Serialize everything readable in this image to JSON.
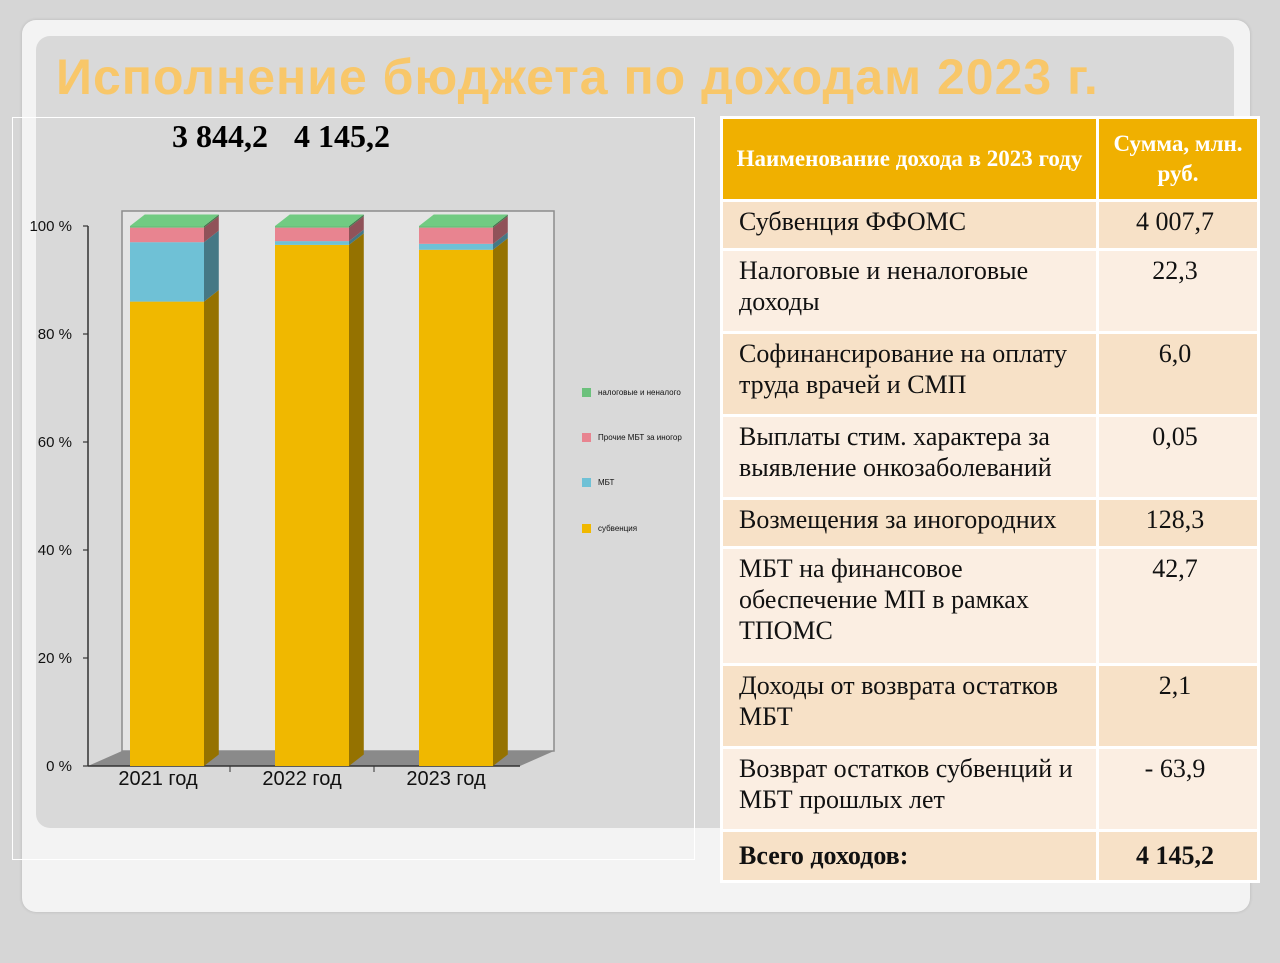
{
  "title": "Исполнение бюджета по доходам 2023 г.",
  "totals": [
    "3 844,2",
    "4 145,2"
  ],
  "chart_data": {
    "type": "bar",
    "stacked": true,
    "percent": true,
    "categories": [
      "2021 год",
      "2022 год",
      "2023 год"
    ],
    "yticks": [
      "0 %",
      "20 %",
      "40 %",
      "60 %",
      "80 %",
      "100 %"
    ],
    "ylim": [
      0,
      100
    ],
    "legend_position": "right",
    "series": [
      {
        "name": "субвенция",
        "color": "#f0b800",
        "values": [
          86,
          96.5,
          95.6
        ]
      },
      {
        "name": "МБТ",
        "color": "#6fc1d6",
        "values": [
          11,
          0.7,
          1.1
        ]
      },
      {
        "name": "Прочие МБТ за иногор",
        "color": "#e88490",
        "values": [
          2.7,
          2.5,
          3.0
        ]
      },
      {
        "name": "налоговые и неналого",
        "color": "#6cc17c",
        "values": [
          0.3,
          0.3,
          0.3
        ]
      }
    ]
  },
  "table": {
    "headers": [
      "Наименование дохода в 2023 году",
      "Сумма, млн. руб."
    ],
    "rows": [
      {
        "name": "Субвенция ФФОМС",
        "amount": "4 007,7"
      },
      {
        "name": "Налоговые и неналоговые доходы",
        "amount": "22,3"
      },
      {
        "name": "Софинансирование на оплату труда врачей и СМП",
        "amount": "6,0"
      },
      {
        "name": "Выплаты стим. характера за выявление онкозаболеваний",
        "amount": "0,05"
      },
      {
        "name": "Возмещения за иногородних",
        "amount": "128,3"
      },
      {
        "name": "МБТ на финансовое обеспечение МП в рамках ТПОМС",
        "amount": "42,7"
      },
      {
        "name": "Доходы от возврата остатков МБТ",
        "amount": "2,1"
      },
      {
        "name": "Возврат остатков субвенций и МБТ прошлых лет",
        "amount": "- 63,9"
      }
    ],
    "total": {
      "name": "Всего доходов:",
      "amount": "4 145,2"
    }
  }
}
